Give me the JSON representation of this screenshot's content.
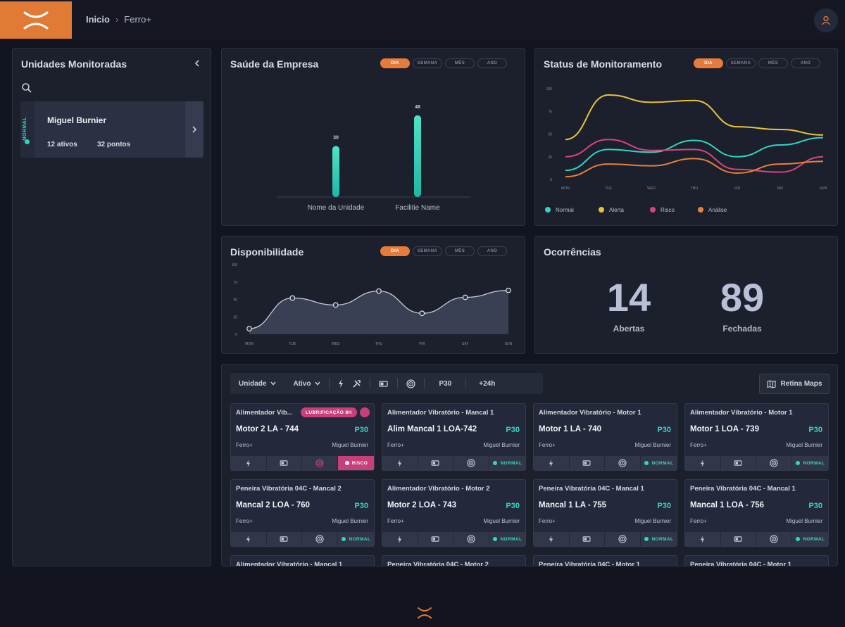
{
  "breadcrumb": {
    "home": "Inicio",
    "separator": "›",
    "current": "Ferro+"
  },
  "colors": {
    "accent": "#e67b3c",
    "normal": "#2fd5c0",
    "alerta": "#e8c33a",
    "risco": "#d8457c",
    "analise": "#e8803a"
  },
  "sidebar": {
    "title": "Unidades Monitoradas",
    "unit": {
      "status": "NORMAL",
      "name": "Miguel Burnier",
      "assets": "12 ativos",
      "points": "32 pontos"
    }
  },
  "period_tabs": [
    "DIA",
    "SEMANA",
    "MÊS",
    "ANO"
  ],
  "saude": {
    "title": "Saúde da Empresa",
    "chart_data": {
      "type": "bar",
      "categories": [
        "Nome da Unidade",
        "Facilitie Name"
      ],
      "values": [
        30,
        48
      ],
      "ylim": [
        0,
        50
      ]
    }
  },
  "status": {
    "title": "Status de Monitoramento",
    "chart_data": {
      "type": "line",
      "categories": [
        "MON",
        "TUE",
        "WED",
        "THU",
        "FRI",
        "SAT",
        "SUN"
      ],
      "yticks": [
        "100",
        "75",
        "50",
        "25",
        "0"
      ],
      "ylim": [
        0,
        100
      ],
      "series": [
        {
          "name": "Normal",
          "color": "#2fd5c0",
          "values": [
            10,
            33,
            30,
            43,
            25,
            38,
            46
          ]
        },
        {
          "name": "Alerta",
          "color": "#e8c33a",
          "values": [
            44,
            93,
            85,
            87,
            58,
            55,
            49
          ]
        },
        {
          "name": "Risco",
          "color": "#d8457c",
          "values": [
            25,
            44,
            32,
            33,
            11,
            8,
            25
          ]
        },
        {
          "name": "Análise",
          "color": "#e8803a",
          "values": [
            3,
            17,
            15,
            23,
            7,
            17,
            20
          ]
        }
      ]
    }
  },
  "disponibilidade": {
    "title": "Disponibilidade",
    "chart_data": {
      "type": "area",
      "categories": [
        "MON",
        "TUE",
        "WED",
        "THU",
        "FRI",
        "SAT",
        "SUN"
      ],
      "yticks": [
        "100",
        "75",
        "50",
        "25",
        "0"
      ],
      "ylim": [
        0,
        100
      ],
      "values": [
        8,
        52,
        42,
        62,
        30,
        53,
        63
      ]
    }
  },
  "ocorrencias": {
    "title": "Ocorrências",
    "open": "14",
    "open_label": "Abertas",
    "closed": "89",
    "closed_label": "Fechadas"
  },
  "filters": {
    "unidade": "Unidade",
    "ativo": "Ativo",
    "p30": "P30",
    "h24": "+24h",
    "retina": "Retina Maps"
  },
  "assets": [
    {
      "title": "Alimentador Vib...",
      "badge": "LUBRIFICAÇÃO  8H",
      "name": "Motor 2 LA - 744",
      "p": "P30",
      "facility": "Ferro+",
      "owner": "Miguel Burnier",
      "status": "RISCO",
      "risk": true
    },
    {
      "title": "Alimentador Vibratório - Mancal 1",
      "name": "Alim Mancal 1 LOA-742",
      "p": "P30",
      "facility": "Ferro+",
      "owner": "Miguel Burnier",
      "status": "NORMAL"
    },
    {
      "title": "Alimentador Vibratório - Motor 1",
      "name": "Motor 1 LA - 740",
      "p": "P30",
      "facility": "Ferro+",
      "owner": "Miguel Burnier",
      "status": "NORMAL"
    },
    {
      "title": "Alimentador Vibratório - Motor 1",
      "name": "Motor 1 LOA - 739",
      "p": "P30",
      "facility": "Ferro+",
      "owner": "Miguel Burnier",
      "status": "NORMAL"
    },
    {
      "title": "Peneira Vibratória 04C - Mancal 2",
      "name": "Mancal 2 LOA - 760",
      "p": "P30",
      "facility": "Ferro+",
      "owner": "Miguel Burnier",
      "status": "NORMAL"
    },
    {
      "title": "Alimentador Vibratório - Motor 2",
      "name": "Motor 2 LOA - 743",
      "p": "P30",
      "facility": "Ferro+",
      "owner": "Miguel Burnier",
      "status": "NORMAL"
    },
    {
      "title": "Peneira Vibratória 04C - Mancal 1",
      "name": "Mancal 1 LA - 755",
      "p": "P30",
      "facility": "Ferro+",
      "owner": "Miguel Burnier",
      "status": "NORMAL"
    },
    {
      "title": "Peneira Vibratória 04C - Mancal 1",
      "name": "Mancal 1 LOA - 756",
      "p": "P30",
      "facility": "Ferro+",
      "owner": "Miguel Burnier",
      "status": "NORMAL"
    }
  ],
  "assets_peek": [
    "Alimentador Vibratório - Mancal 1",
    "Peneira Vibratória 04C - Motor 2",
    "Peneira Vibratória 04C - Motor 1",
    "Peneira Vibratória 04C - Motor 1"
  ]
}
